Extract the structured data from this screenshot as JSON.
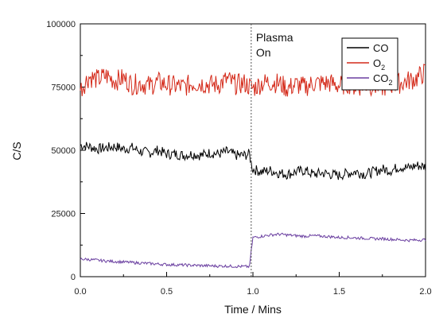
{
  "chart_data": {
    "type": "line",
    "xlabel": "Time / Mins",
    "ylabel": "C/S",
    "xlim": [
      0,
      2.0
    ],
    "ylim": [
      0,
      100000
    ],
    "x_ticks": [
      0.0,
      0.5,
      1.0,
      1.5,
      2.0
    ],
    "x_tick_labels": [
      "0.0",
      "0.5",
      "1.0",
      "1.5",
      "2.0"
    ],
    "y_ticks": [
      0,
      25000,
      50000,
      75000,
      100000
    ],
    "y_tick_labels": [
      "0",
      "25000",
      "50000",
      "75000",
      "100000"
    ],
    "grid": false,
    "legend_position": "top-right",
    "annotation": {
      "x": 0.99,
      "line1": "Plasma",
      "line2": "On"
    },
    "series": [
      {
        "name": "CO",
        "legend_main": "CO",
        "legend_sub": "",
        "color": "#000000",
        "x": [
          0.0,
          0.05,
          0.1,
          0.15,
          0.2,
          0.25,
          0.3,
          0.35,
          0.4,
          0.45,
          0.5,
          0.55,
          0.6,
          0.65,
          0.7,
          0.75,
          0.8,
          0.85,
          0.9,
          0.95,
          0.98,
          0.99,
          1.0,
          1.05,
          1.1,
          1.15,
          1.2,
          1.25,
          1.3,
          1.35,
          1.4,
          1.45,
          1.5,
          1.55,
          1.6,
          1.65,
          1.7,
          1.75,
          1.8,
          1.85,
          1.9,
          1.95,
          2.0
        ],
        "y": [
          52000,
          51500,
          50500,
          51000,
          51500,
          50500,
          51000,
          49500,
          49000,
          50000,
          48500,
          48500,
          48000,
          48500,
          48000,
          49000,
          48500,
          49500,
          48000,
          48000,
          48500,
          45000,
          42500,
          41500,
          42000,
          41000,
          40500,
          41500,
          42000,
          40500,
          41000,
          40500,
          40000,
          41000,
          41500,
          40500,
          41500,
          42500,
          42000,
          43500,
          43000,
          44000,
          43500
        ]
      },
      {
        "name": "O2",
        "legend_main": "O",
        "legend_sub": "2",
        "color": "#d42a1a",
        "x": [
          0.0,
          0.05,
          0.1,
          0.15,
          0.2,
          0.25,
          0.3,
          0.35,
          0.4,
          0.45,
          0.5,
          0.55,
          0.6,
          0.65,
          0.7,
          0.75,
          0.8,
          0.85,
          0.9,
          0.95,
          1.0,
          1.05,
          1.1,
          1.15,
          1.2,
          1.25,
          1.3,
          1.35,
          1.4,
          1.45,
          1.5,
          1.55,
          1.6,
          1.65,
          1.7,
          1.75,
          1.8,
          1.85,
          1.9,
          1.95,
          2.0
        ],
        "y": [
          74000,
          79000,
          78000,
          79500,
          77500,
          78500,
          76000,
          76500,
          75500,
          77000,
          76000,
          75500,
          75000,
          76500,
          76500,
          76000,
          76000,
          78000,
          76000,
          76500,
          74500,
          76500,
          77000,
          76500,
          74500,
          76000,
          75000,
          76500,
          76500,
          76500,
          75500,
          76500,
          75000,
          76000,
          75500,
          75000,
          76000,
          76500,
          77500,
          78500,
          81000
        ]
      },
      {
        "name": "CO2",
        "legend_main": "CO",
        "legend_sub": "2",
        "color": "#6a3fa0",
        "x": [
          0.0,
          0.05,
          0.1,
          0.15,
          0.2,
          0.25,
          0.3,
          0.35,
          0.4,
          0.45,
          0.5,
          0.55,
          0.6,
          0.65,
          0.7,
          0.75,
          0.8,
          0.85,
          0.9,
          0.95,
          0.98,
          0.99,
          1.0,
          1.05,
          1.1,
          1.15,
          1.2,
          1.25,
          1.3,
          1.35,
          1.4,
          1.45,
          1.5,
          1.55,
          1.6,
          1.65,
          1.7,
          1.75,
          1.8,
          1.85,
          1.9,
          1.95,
          2.0
        ],
        "y": [
          7000,
          6800,
          6500,
          6200,
          6000,
          5800,
          5600,
          5400,
          5200,
          5000,
          4800,
          4700,
          4600,
          4500,
          4400,
          4300,
          4200,
          4200,
          4100,
          4000,
          4000,
          10000,
          15500,
          16000,
          16500,
          16800,
          16500,
          16200,
          16000,
          16200,
          16000,
          15800,
          15500,
          15500,
          15300,
          15200,
          15000,
          15000,
          14800,
          14600,
          14400,
          14500,
          14600
        ]
      }
    ]
  }
}
